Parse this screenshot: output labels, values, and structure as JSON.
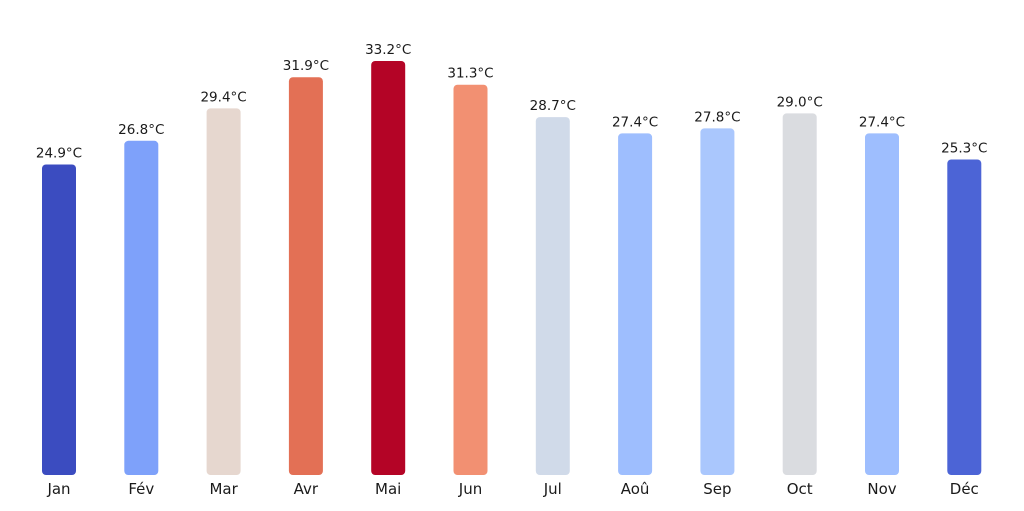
{
  "chart_data": {
    "type": "bar",
    "categories": [
      "Jan",
      "Fév",
      "Mar",
      "Avr",
      "Mai",
      "Jun",
      "Jul",
      "Aoû",
      "Sep",
      "Oct",
      "Nov",
      "Déc"
    ],
    "values": [
      24.9,
      26.8,
      29.4,
      31.9,
      33.2,
      31.3,
      28.7,
      27.4,
      27.8,
      29.0,
      27.4,
      25.3
    ],
    "data_labels": [
      "24.9°C",
      "26.8°C",
      "29.4°C",
      "31.9°C",
      "33.2°C",
      "31.3°C",
      "28.7°C",
      "27.4°C",
      "27.8°C",
      "29.0°C",
      "27.4°C",
      "25.3°C"
    ],
    "colors": [
      "#3b4cc0",
      "#7ea1fa",
      "#e6d7cf",
      "#e37055",
      "#b40426",
      "#f29072",
      "#d0dae9",
      "#9ebefe",
      "#aac7fd",
      "#dadce0",
      "#9ebefe",
      "#4c64d6"
    ],
    "title": "",
    "xlabel": "",
    "ylabel": "",
    "ylim": [
      0,
      33.2
    ],
    "grid": false,
    "legend": "none"
  }
}
